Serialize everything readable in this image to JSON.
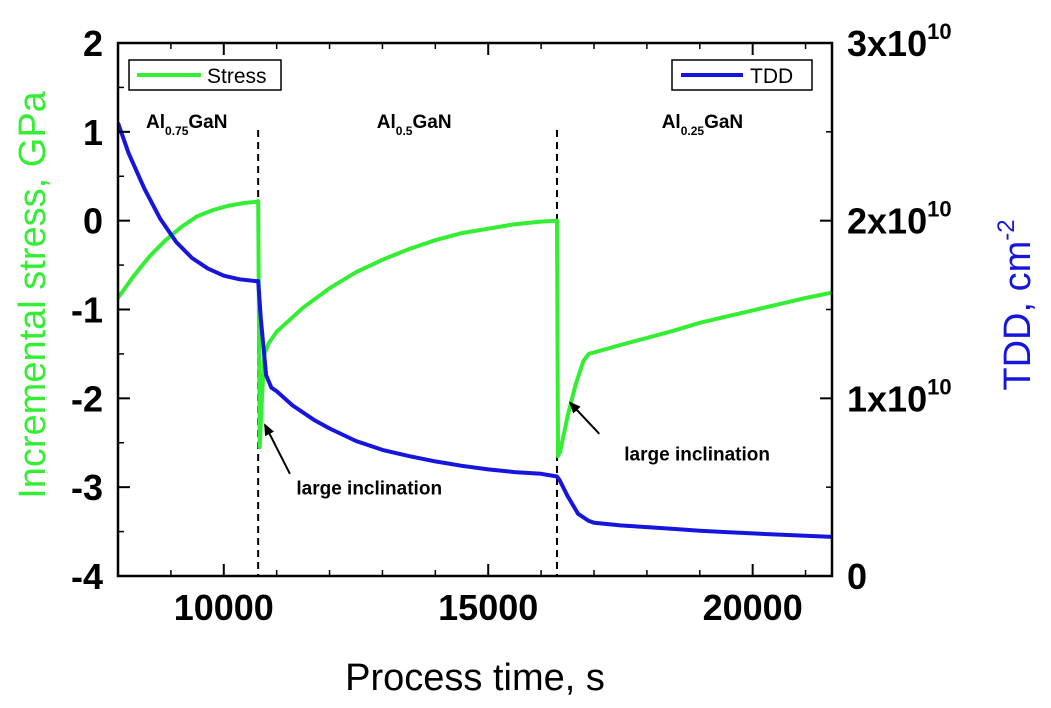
{
  "chart_data": {
    "type": "line",
    "xlabel": "Process time, s",
    "ylabel_left": "Incremental stress, GPa",
    "ylabel_right_main": "TDD, cm",
    "ylabel_right_sup": "-2",
    "xlim": [
      8000,
      21500
    ],
    "ylim_left": [
      -4,
      2
    ],
    "ylim_right": [
      0,
      30000000000.0
    ],
    "x_ticks": [
      10000,
      15000,
      20000
    ],
    "x_tick_labels": [
      "10000",
      "15000",
      "20000"
    ],
    "y_left_ticks": [
      2,
      1,
      0,
      -1,
      -2,
      -3,
      -4
    ],
    "y_left_tick_labels": [
      "2",
      "1",
      "0",
      "-1",
      "-2",
      "-3",
      "-4"
    ],
    "y_right_ticks": [
      0,
      10000000000.0,
      20000000000.0,
      30000000000.0
    ],
    "y_right_tick_labels": [
      {
        "base": "0",
        "exp": ""
      },
      {
        "base": "1x10",
        "exp": "10"
      },
      {
        "base": "2x10",
        "exp": "10"
      },
      {
        "base": "3x10",
        "exp": "10"
      }
    ],
    "colors": {
      "stress": "#33ee33",
      "tdd": "#1515dd",
      "axis": "#000000"
    },
    "legend": {
      "stress": {
        "label": "Stress",
        "position": "top-left"
      },
      "tdd": {
        "label": "TDD",
        "position": "top-right"
      }
    },
    "region_labels": [
      {
        "base": "Al",
        "sub": "0.75",
        "suffix": "GaN",
        "x": 9300
      },
      {
        "base": "Al",
        "sub": "0.5",
        "suffix": "GaN",
        "x": 13600
      },
      {
        "base": "Al",
        "sub": "0.25",
        "suffix": "GaN",
        "x": 19050
      }
    ],
    "dividers_x": [
      10650,
      16300
    ],
    "annotations": [
      {
        "text": "large inclination",
        "x": 12750,
        "y": -3.08,
        "arrow_from": [
          11250,
          -2.85
        ],
        "arrow_to": [
          10780,
          -2.3
        ]
      },
      {
        "text": "large inclination",
        "x": 18950,
        "y": -2.7,
        "arrow_from": [
          17100,
          -2.4
        ],
        "arrow_to": [
          16550,
          -2.05
        ]
      }
    ],
    "series": [
      {
        "name": "Stress",
        "axis": "left",
        "x": [
          8000,
          8300,
          8600,
          8900,
          9200,
          9500,
          9800,
          10100,
          10400,
          10600,
          10650,
          10680,
          10720,
          10770,
          10850,
          11000,
          11500,
          12000,
          12500,
          13000,
          13500,
          14000,
          14500,
          15000,
          15500,
          16000,
          16290,
          16300,
          16320,
          16360,
          16500,
          16650,
          16800,
          16900,
          17500,
          18000,
          18500,
          19000,
          19500,
          20000,
          20500,
          21000,
          21500
        ],
        "y": [
          -0.87,
          -0.62,
          -0.4,
          -0.22,
          -0.07,
          0.05,
          0.12,
          0.17,
          0.2,
          0.21,
          0.22,
          -2.55,
          -2.0,
          -1.5,
          -1.38,
          -1.25,
          -0.98,
          -0.76,
          -0.58,
          -0.44,
          -0.32,
          -0.22,
          -0.14,
          -0.09,
          -0.04,
          -0.01,
          0.0,
          0.0,
          -2.65,
          -2.6,
          -2.2,
          -1.85,
          -1.58,
          -1.5,
          -1.4,
          -1.32,
          -1.24,
          -1.15,
          -1.08,
          -1.01,
          -0.94,
          -0.87,
          -0.81
        ]
      },
      {
        "name": "TDD",
        "axis": "right",
        "x": [
          8000,
          8200,
          8500,
          8800,
          9100,
          9400,
          9700,
          10000,
          10300,
          10600,
          10650,
          10700,
          10800,
          10900,
          11000,
          11300,
          11700,
          12000,
          12500,
          13000,
          13500,
          14000,
          14500,
          15000,
          15500,
          16000,
          16300,
          16350,
          16500,
          16700,
          16900,
          17000,
          17500,
          18000,
          18500,
          19000,
          19500,
          20000,
          20500,
          21000,
          21500
        ],
        "y": [
          25500000000.0,
          23800000000.0,
          21800000000.0,
          20100000000.0,
          18800000000.0,
          17900000000.0,
          17300000000.0,
          16900000000.0,
          16700000000.0,
          16600000000.0,
          16600000000.0,
          14500000000.0,
          11300000000.0,
          10600000000.0,
          10400000000.0,
          9600000000.0,
          8800000000.0,
          8300000000.0,
          7600000000.0,
          7100000000.0,
          6750000000.0,
          6450000000.0,
          6200000000.0,
          6000000000.0,
          5850000000.0,
          5750000000.0,
          5600000000.0,
          5400000000.0,
          4500000000.0,
          3500000000.0,
          3100000000.0,
          3000000000.0,
          2850000000.0,
          2750000000.0,
          2650000000.0,
          2550000000.0,
          2470000000.0,
          2400000000.0,
          2330000000.0,
          2260000000.0,
          2200000000.0
        ]
      }
    ]
  }
}
